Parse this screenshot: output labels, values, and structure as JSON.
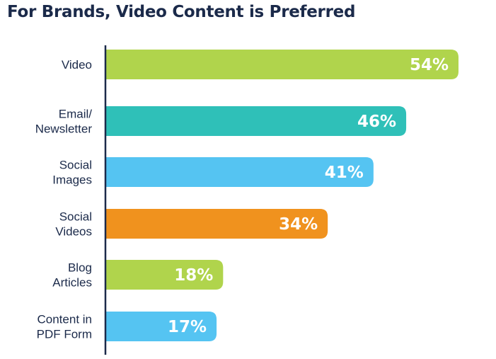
{
  "chart_data": {
    "type": "bar",
    "orientation": "horizontal",
    "title": "For Brands, Video Content is Preferred",
    "categories": [
      [
        "Video"
      ],
      [
        "Email/",
        "Newsletter"
      ],
      [
        "Social",
        "Images"
      ],
      [
        "Social",
        "Videos"
      ],
      [
        "Blog",
        "Articles"
      ],
      [
        "Content in",
        "PDF Form"
      ]
    ],
    "values": [
      54,
      46,
      41,
      34,
      18,
      17
    ],
    "value_labels": [
      "54%",
      "46%",
      "41%",
      "34%",
      "18%",
      "17%"
    ],
    "colors": [
      "#b0d44c",
      "#2fc0b8",
      "#55c4f2",
      "#f0921e",
      "#b0d44c",
      "#55c4f2"
    ],
    "xlim": [
      0,
      54
    ],
    "grid": false,
    "legend": "none"
  },
  "colors": {
    "title": "#1b2a4a",
    "axis": "#1b2a4a",
    "label_text": "#1b2a4a",
    "value_text": "#ffffff"
  }
}
